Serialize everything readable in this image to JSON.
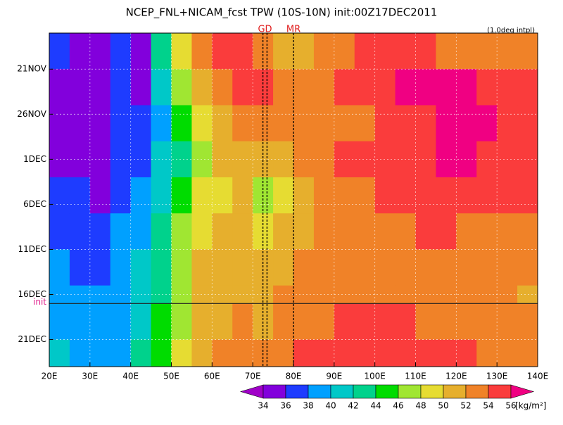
{
  "chart_data": {
    "type": "hovmoller",
    "title": "NCEP_FNL+NICAM_fcst TPW (10S-10N) init:00Z17DEC2011",
    "note": "(1.0deg intpl)",
    "init_label": "init",
    "init_date": "2011-12-17",
    "units": "[kg/m²]",
    "xlim": [
      20,
      140
    ],
    "xticks": [
      {
        "value": 20,
        "label": "20E"
      },
      {
        "value": 30,
        "label": "30E"
      },
      {
        "value": 40,
        "label": "40E"
      },
      {
        "value": 50,
        "label": "50E"
      },
      {
        "value": 60,
        "label": "60E"
      },
      {
        "value": 70,
        "label": "70E"
      },
      {
        "value": 80,
        "label": "80E"
      },
      {
        "value": 90,
        "label": "90E"
      },
      {
        "value": 100,
        "label": "100E"
      },
      {
        "value": 110,
        "label": "110E"
      },
      {
        "value": 120,
        "label": "120E"
      },
      {
        "value": 130,
        "label": "130E"
      },
      {
        "value": 140,
        "label": "140E"
      }
    ],
    "ylim": [
      "2011-11-17",
      "2011-12-24"
    ],
    "yticks": [
      {
        "value": "2011-11-21",
        "label": "21NOV"
      },
      {
        "value": "2011-11-26",
        "label": "26NOV"
      },
      {
        "value": "2011-12-01",
        "label": "1DEC"
      },
      {
        "value": "2011-12-06",
        "label": "6DEC"
      },
      {
        "value": "2011-12-11",
        "label": "11DEC"
      },
      {
        "value": "2011-12-16",
        "label": "16DEC"
      },
      {
        "value": "2011-12-21",
        "label": "21DEC"
      }
    ],
    "grid": true,
    "markers": [
      {
        "label": "GD",
        "lons": [
          72.5,
          73.5
        ]
      },
      {
        "label": "MR",
        "lons": [
          80
        ]
      }
    ],
    "x_edges": [
      20,
      25,
      30,
      35,
      40,
      45,
      50,
      55,
      60,
      65,
      70,
      75,
      80,
      85,
      90,
      95,
      100,
      105,
      110,
      115,
      120,
      125,
      130,
      135,
      140
    ],
    "y_edges": [
      "2011-11-17",
      "2011-11-21",
      "2011-11-25",
      "2011-11-29",
      "2011-12-03",
      "2011-12-07",
      "2011-12-11",
      "2011-12-15",
      "2011-12-17",
      "2011-12-21",
      "2011-12-24"
    ],
    "z": [
      [
        37,
        35,
        35,
        37,
        35,
        42,
        49,
        53,
        55,
        55,
        53,
        51,
        51,
        52,
        53,
        55,
        55,
        55,
        54,
        53,
        52,
        52,
        52,
        52
      ],
      [
        35,
        34,
        34,
        36,
        35,
        40,
        47,
        51,
        53,
        54,
        54,
        52,
        52,
        53,
        54,
        55,
        55,
        56,
        56,
        56,
        56,
        55,
        54,
        54
      ],
      [
        35,
        34,
        34,
        36,
        36,
        39,
        44,
        48,
        51,
        53,
        53,
        52,
        53,
        53,
        53,
        53,
        54,
        55,
        55,
        56,
        56,
        56,
        55,
        55
      ],
      [
        35,
        35,
        35,
        37,
        37,
        40,
        43,
        46,
        50,
        51,
        51,
        51,
        52,
        53,
        54,
        54,
        55,
        55,
        55,
        56,
        56,
        55,
        55,
        54
      ],
      [
        36,
        36,
        35,
        37,
        38,
        41,
        45,
        48,
        49,
        50,
        46,
        48,
        51,
        53,
        53,
        53,
        54,
        55,
        55,
        55,
        55,
        55,
        54,
        54
      ],
      [
        36,
        36,
        36,
        38,
        39,
        42,
        46,
        49,
        50,
        50,
        49,
        50,
        51,
        52,
        53,
        53,
        53,
        53,
        54,
        54,
        53,
        53,
        53,
        52
      ],
      [
        38,
        37,
        37,
        38,
        40,
        43,
        47,
        50,
        51,
        51,
        51,
        51,
        52,
        52,
        53,
        52,
        52,
        52,
        53,
        53,
        52,
        52,
        52,
        52
      ],
      [
        38,
        38,
        38,
        38,
        40,
        43,
        47,
        50,
        51,
        51,
        51,
        52,
        52,
        52,
        52,
        52,
        52,
        52,
        52,
        52,
        52,
        52,
        52,
        51
      ],
      [
        39,
        39,
        38,
        39,
        41,
        44,
        47,
        50,
        51,
        52,
        51,
        52,
        53,
        53,
        54,
        54,
        54,
        54,
        53,
        53,
        53,
        53,
        52,
        52
      ],
      [
        40,
        39,
        38,
        39,
        42,
        45,
        48,
        51,
        52,
        53,
        52,
        53,
        54,
        55,
        55,
        55,
        55,
        55,
        54,
        54,
        54,
        53,
        53,
        53
      ]
    ],
    "levels": [
      34,
      36,
      38,
      40,
      42,
      44,
      46,
      48,
      50,
      52,
      54,
      56
    ],
    "colors": [
      "#a000c8",
      "#8200dc",
      "#1e3cff",
      "#00a0ff",
      "#00c8c8",
      "#00d28c",
      "#00dc00",
      "#a0e632",
      "#e6dc32",
      "#e6af2d",
      "#f08228",
      "#fa3c3c",
      "#f00082"
    ]
  }
}
